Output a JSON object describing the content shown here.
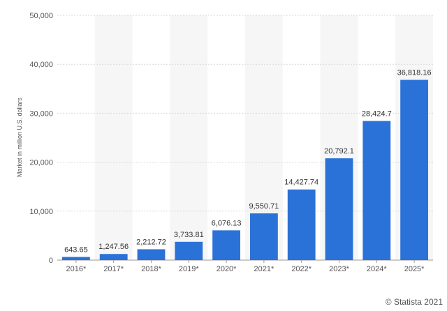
{
  "chart_data": {
    "type": "bar",
    "categories": [
      "2016*",
      "2017*",
      "2018*",
      "2019*",
      "2020*",
      "2021*",
      "2022*",
      "2023*",
      "2024*",
      "2025*"
    ],
    "values": [
      643.65,
      1247.56,
      2212.72,
      3733.81,
      6076.13,
      9550.71,
      14427.74,
      20792.1,
      28424.7,
      36818.16
    ],
    "data_labels": [
      "643.65",
      "1,247.56",
      "2,212.72",
      "3,733.81",
      "6,076.13",
      "9,550.71",
      "14,427.74",
      "20,792.1",
      "28,424.7",
      "36,818.16"
    ],
    "title": "",
    "xlabel": "",
    "ylabel": "Market in million U.S. dollars",
    "ylim": [
      0,
      50000
    ],
    "yticks": [
      0,
      10000,
      20000,
      30000,
      40000,
      50000
    ],
    "ytick_labels": [
      "0",
      "10,000",
      "20,000",
      "30,000",
      "40,000",
      "50,000"
    ],
    "grid": true,
    "bar_color": "#2b72d8"
  },
  "credit": "© Statista 2021"
}
